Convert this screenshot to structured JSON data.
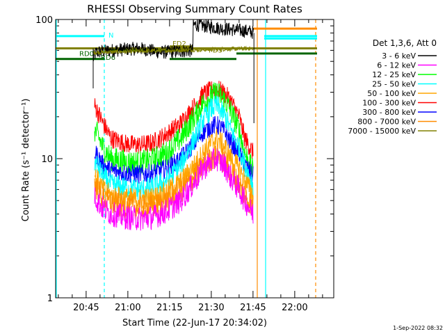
{
  "chart_data": {
    "type": "line",
    "title": "RHESSI Observing Summary Count Rates",
    "xlabel": "Start Time (22-Jun-17 20:34:02)",
    "ylabel": "Count Rate (s⁻¹ detector⁻¹)",
    "yscale": "log",
    "ylim": [
      1,
      100
    ],
    "xlim_minutes": [
      0,
      100
    ],
    "x_ticks": [
      {
        "label": "20:45",
        "minute": 10.97
      },
      {
        "label": "21:00",
        "minute": 25.97
      },
      {
        "label": "21:15",
        "minute": 40.97
      },
      {
        "label": "21:30",
        "minute": 55.97
      },
      {
        "label": "21:45",
        "minute": 70.97
      },
      {
        "label": "22:00",
        "minute": 85.97
      }
    ],
    "y_ticks": [
      {
        "label": "1",
        "value": 1
      },
      {
        "label": "10",
        "value": 10
      },
      {
        "label": "100",
        "value": 100
      }
    ],
    "legend": {
      "placement": "right",
      "header": "Det 1,3,6, Att 0",
      "entries": [
        {
          "label": "3 - 6 keV",
          "color": "#000000"
        },
        {
          "label": "6 - 12 keV",
          "color": "#ff00ff"
        },
        {
          "label": "12 - 25 keV",
          "color": "#00ff00"
        },
        {
          "label": "25 - 50 keV",
          "color": "#00ffff"
        },
        {
          "label": "50 - 100 keV",
          "color": "#ffa500"
        },
        {
          "label": "100 - 300 keV",
          "color": "#ff0000"
        },
        {
          "label": "300 - 800 keV",
          "color": "#0000ff"
        },
        {
          "label": "800 - 7000 keV",
          "color": "#ff8c00"
        },
        {
          "label": "7000 - 15000 keV",
          "color": "#808000"
        }
      ]
    },
    "series": [
      {
        "name": "3 - 6 keV",
        "color": "#000000",
        "noise": 0.05,
        "x": [
          13.5,
          14.5,
          20,
          30,
          38,
          49.3,
          49.5,
          50,
          60,
          70,
          71.3
        ],
        "y": [
          52,
          58,
          60,
          62,
          58,
          60,
          90,
          92,
          86,
          82,
          80
        ]
      },
      {
        "name": "7000 - 15000 keV",
        "color": "#808000",
        "noise": 0.015,
        "x": [
          13.5,
          71.3
        ],
        "y": [
          58,
          62
        ]
      },
      {
        "name": "100 - 300 keV",
        "color": "#ff0000",
        "noise": 0.07,
        "x": [
          14,
          15,
          17,
          20,
          25,
          30,
          35,
          40,
          45,
          50,
          53,
          56,
          58,
          61,
          63,
          66,
          68,
          71
        ],
        "y": [
          24,
          22,
          18,
          14,
          12.8,
          12.5,
          13,
          15,
          18,
          24,
          29,
          31,
          32,
          29,
          26,
          20,
          14,
          11
        ]
      },
      {
        "name": "12 - 25 keV",
        "color": "#00ff00",
        "noise": 0.09,
        "x": [
          14,
          15,
          17,
          20,
          25,
          30,
          35,
          40,
          45,
          50,
          53,
          56,
          58,
          61,
          63,
          66,
          68,
          71
        ],
        "y": [
          16,
          15,
          12,
          10,
          9.5,
          9.3,
          9.8,
          11,
          14,
          20,
          25,
          28,
          30,
          26,
          22,
          16,
          11,
          8
        ]
      },
      {
        "name": "300 - 800 keV",
        "color": "#0000ff",
        "noise": 0.07,
        "x": [
          14,
          15,
          17,
          20,
          25,
          30,
          35,
          40,
          45,
          50,
          53,
          56,
          58,
          61,
          63,
          66,
          68,
          71
        ],
        "y": [
          11,
          10.5,
          9,
          8.2,
          7.9,
          7.7,
          7.9,
          8.5,
          10,
          13,
          15.5,
          17,
          17.5,
          15.5,
          13,
          11,
          9,
          7.5
        ]
      },
      {
        "name": "25 - 50 keV",
        "color": "#00ffff",
        "noise": 0.08,
        "x": [
          14,
          15,
          17,
          20,
          25,
          30,
          35,
          40,
          45,
          50,
          53,
          56,
          58,
          61,
          63,
          66,
          68,
          71
        ],
        "y": [
          9.5,
          9,
          7.5,
          6.5,
          6.2,
          6.0,
          6.2,
          7,
          9,
          14,
          19,
          23,
          24,
          20,
          16,
          12,
          9,
          6.5
        ]
      },
      {
        "name": "50 - 100 keV",
        "color": "#ffa500",
        "noise": 0.08,
        "x": [
          14,
          15,
          17,
          20,
          25,
          30,
          35,
          40,
          45,
          50,
          53,
          56,
          58,
          61,
          63,
          66,
          68,
          71
        ],
        "y": [
          7.5,
          7,
          6,
          5.4,
          5.2,
          5.1,
          5.2,
          5.8,
          6.8,
          9,
          11,
          13,
          14,
          12,
          10,
          8.5,
          7,
          5.5
        ]
      },
      {
        "name": "800 - 7000 keV",
        "color": "#ff8c00",
        "noise": 0.09,
        "x": [
          14,
          15,
          17,
          20,
          25,
          30,
          35,
          40,
          45,
          50,
          53,
          56,
          58,
          61,
          63,
          66,
          68,
          71
        ],
        "y": [
          6.5,
          6,
          5.2,
          4.8,
          4.5,
          4.4,
          4.5,
          5,
          5.8,
          7.5,
          9,
          10,
          10.5,
          9.5,
          8,
          6.5,
          5.5,
          4.5
        ]
      },
      {
        "name": "6 - 12 keV",
        "color": "#ff00ff",
        "noise": 0.09,
        "x": [
          14,
          15,
          17,
          20,
          25,
          30,
          35,
          40,
          45,
          50,
          53,
          56,
          58,
          61,
          63,
          66,
          68,
          71
        ],
        "y": [
          5.5,
          5,
          4.4,
          4.0,
          3.8,
          3.7,
          3.8,
          4.2,
          5,
          6.8,
          8.5,
          9.5,
          10,
          8.8,
          7.3,
          6,
          5,
          4
        ]
      }
    ],
    "flag_bars": [
      {
        "label": "N",
        "color": "#00ffff",
        "x_start": 0,
        "x_end": 17.5,
        "y": 76
      },
      {
        "label": "",
        "color": "#00ffff",
        "x_start": 75,
        "x_end": 94,
        "y": 76
      },
      {
        "label": "",
        "color": "#00ffff",
        "x_start": 75,
        "x_end": 94,
        "y": 73
      },
      {
        "label": "FD2",
        "color": "#808000",
        "x_start": 41,
        "x_end": 49,
        "y": 64
      },
      {
        "label": "FD3",
        "color": "#808000",
        "x_start": 0,
        "x_end": 94,
        "y": 62
      },
      {
        "label": "RD0",
        "color": "#006400",
        "x_start": 17.5,
        "x_end": 49,
        "y": 60
      },
      {
        "label": "RD6",
        "color": "#006400",
        "x_start": 0,
        "x_end": 17.5,
        "y": 52
      },
      {
        "label": "",
        "color": "#006400",
        "x_start": 41,
        "x_end": 65,
        "y": 52
      },
      {
        "label": "",
        "color": "#006400",
        "x_start": 65,
        "x_end": 94,
        "y": 57
      },
      {
        "label": "",
        "color": "#ff8c00",
        "x_start": 71,
        "x_end": 94,
        "y": 86
      }
    ],
    "vertical_markers": [
      {
        "color": "#00ffff",
        "x": 0,
        "style": "solid"
      },
      {
        "color": "#00ffff",
        "x": 17.5,
        "style": "dashed"
      },
      {
        "color": "#ff8c00",
        "x": 72.5,
        "style": "solid"
      },
      {
        "color": "#00ffff",
        "x": 75.5,
        "style": "solid"
      },
      {
        "color": "#ff8c00",
        "x": 93.5,
        "style": "dashed"
      }
    ],
    "timestamp": "1-Sep-2022 08:32"
  }
}
